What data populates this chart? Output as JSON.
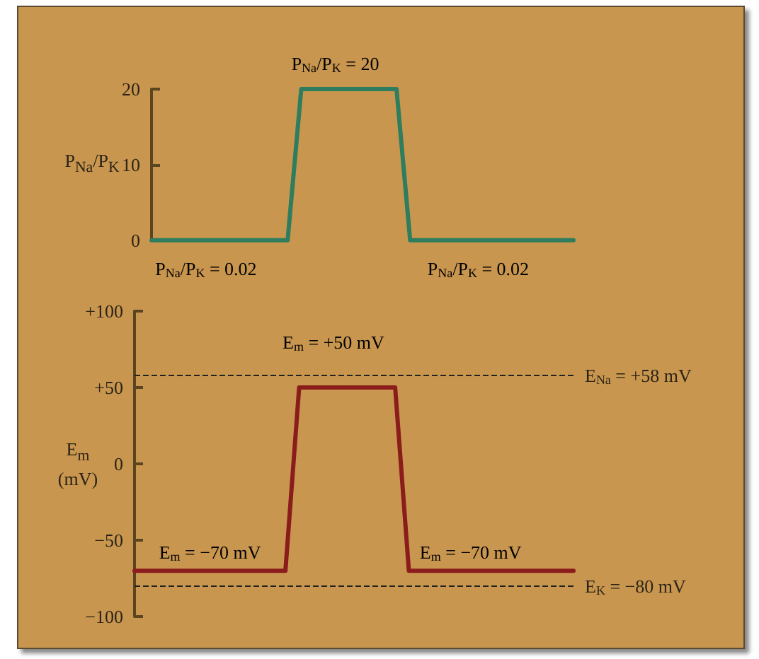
{
  "chart_data": [
    {
      "type": "line",
      "ylabel": "P$_{Na}$/P$_{K}$",
      "categories": [
        null,
        null,
        null,
        null,
        null,
        null,
        null,
        null,
        null,
        null,
        null,
        null,
        null,
        null,
        null,
        null,
        null,
        null,
        null,
        null,
        null,
        null,
        null,
        null,
        null,
        null,
        null,
        null,
        null,
        null,
        null,
        null
      ],
      "series": [
        {
          "color": "#2e7d5e",
          "values": [
            0.02,
            0.02,
            0.02,
            0.02,
            0.02,
            0.02,
            0.02,
            0.02,
            0.02,
            0.02,
            0.02,
            20,
            20,
            20,
            20,
            20,
            20,
            20,
            20,
            0.02,
            0.02,
            0.02,
            0.02,
            0.02,
            0.02,
            0.02,
            0.02,
            0.02,
            0.02,
            0.02,
            0.02,
            0.02
          ]
        }
      ],
      "ylim": [
        0,
        20
      ],
      "yticks": [
        0,
        10,
        20
      ],
      "tick_labels": "y",
      "grid": false,
      "marker": "none",
      "line_style": "solid",
      "annotations": [
        {
          "text": "P$_{Na}$/P$_{K}$ = 20",
          "y": 20
        },
        {
          "text": "P$_{Na}$/P$_{K}$ = 0.02",
          "y": 0.02
        },
        {
          "text": "P$_{Na}$/P$_{K}$ = 0.02",
          "y": 0.02
        }
      ]
    },
    {
      "type": "line",
      "ylabel": "E$_{m}$ (mV)",
      "categories": [
        null,
        null,
        null,
        null,
        null,
        null,
        null,
        null,
        null,
        null,
        null,
        null,
        null,
        null,
        null,
        null,
        null,
        null,
        null,
        null,
        null,
        null,
        null,
        null,
        null,
        null,
        null,
        null,
        null,
        null,
        null,
        null,
        null
      ],
      "series": [
        {
          "color": "#8b1c1c",
          "values": [
            -70,
            -70,
            -70,
            -70,
            -70,
            -70,
            -70,
            -70,
            -70,
            -70,
            -70,
            -70,
            50,
            50,
            50,
            50,
            50,
            50,
            50,
            50,
            -70,
            -70,
            -70,
            -70,
            -70,
            -70,
            -70,
            -70,
            -70,
            -70,
            -70,
            -70,
            -70
          ]
        }
      ],
      "ylim": [
        -100,
        100
      ],
      "yticks": [
        {
          "value": -100,
          "label": "−100"
        },
        {
          "value": -50,
          "label": "−50"
        },
        {
          "value": 0,
          "label": "0"
        },
        {
          "value": 50,
          "label": "+50"
        },
        {
          "value": 100,
          "label": "+100"
        }
      ],
      "tick_labels": "y",
      "grid": false,
      "marker": "none",
      "line_style": "solid",
      "ref_lines": [
        {
          "axis": "y",
          "value": 58,
          "label": "E$_{Na}$ = +58 mV",
          "color": "#222222",
          "line_style": "dashed"
        },
        {
          "axis": "y",
          "value": -80,
          "label": "E$_{K}$ = −80 mV",
          "color": "#222222",
          "line_style": "dashed"
        }
      ],
      "annotations": [
        {
          "text": "E$_{m}$ = +50 mV",
          "y": 50
        },
        {
          "text": "E$_{m}$ = −70 mV",
          "y": -70
        },
        {
          "text": "E$_{m}$ = −70 mV",
          "y": -70
        }
      ]
    }
  ]
}
